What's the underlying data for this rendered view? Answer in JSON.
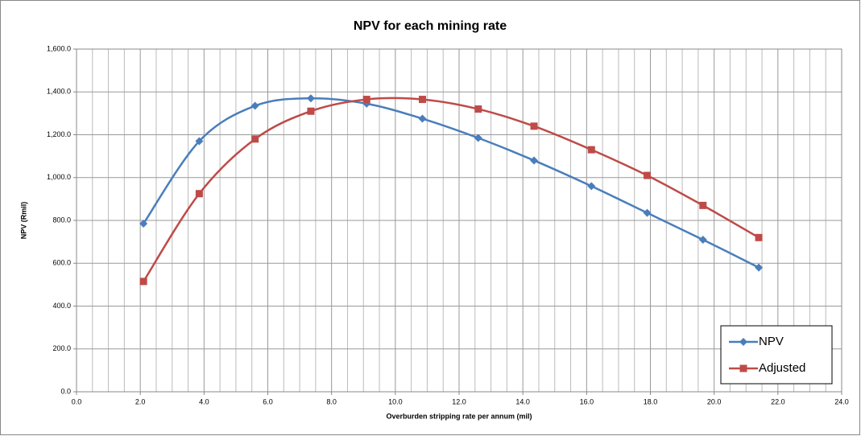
{
  "chart_data": {
    "type": "line",
    "title": "NPV for each mining rate",
    "xlabel": "Overburden stripping rate per annum (mil)",
    "ylabel": "NPV (Rmil)",
    "x": [
      2.1,
      3.85,
      5.6,
      7.35,
      9.1,
      10.85,
      12.6,
      14.35,
      16.15,
      17.9,
      19.65,
      21.4
    ],
    "series": [
      {
        "name": "NPV",
        "color": "#4a7ebb",
        "marker": "diamond",
        "values": [
          785,
          1170,
          1335,
          1370,
          1345,
          1275,
          1185,
          1080,
          960,
          835,
          710,
          580
        ]
      },
      {
        "name": "Adjusted",
        "color": "#be4b48",
        "marker": "square",
        "values": [
          515,
          925,
          1180,
          1310,
          1365,
          1365,
          1320,
          1240,
          1130,
          1010,
          870,
          720
        ]
      }
    ],
    "xlim": [
      0,
      24
    ],
    "xticks": [
      {
        "value": 0,
        "label": "0.0"
      },
      {
        "value": 2,
        "label": "2.0"
      },
      {
        "value": 4,
        "label": "4.0"
      },
      {
        "value": 6,
        "label": "6.0"
      },
      {
        "value": 8,
        "label": "8.0"
      },
      {
        "value": 10,
        "label": "10.0"
      },
      {
        "value": 12,
        "label": "12.0"
      },
      {
        "value": 14,
        "label": "14.0"
      },
      {
        "value": 16,
        "label": "16.0"
      },
      {
        "value": 18,
        "label": "18.0"
      },
      {
        "value": 20,
        "label": "20.0"
      },
      {
        "value": 22,
        "label": "22.0"
      },
      {
        "value": 24,
        "label": "24.0"
      }
    ],
    "ylim": [
      0,
      1600
    ],
    "yticks": [
      {
        "value": 0,
        "label": "0.0"
      },
      {
        "value": 200,
        "label": "200.0"
      },
      {
        "value": 400,
        "label": "400.0"
      },
      {
        "value": 600,
        "label": "600.0"
      },
      {
        "value": 800,
        "label": "800.0"
      },
      {
        "value": 1000,
        "label": "1,000.0"
      },
      {
        "value": 1200,
        "label": "1,200.0"
      },
      {
        "value": 1400,
        "label": "1,400.0"
      },
      {
        "value": 1600,
        "label": "1,600.0"
      }
    ],
    "grid": true,
    "smooth": true,
    "legend": "lower right"
  }
}
